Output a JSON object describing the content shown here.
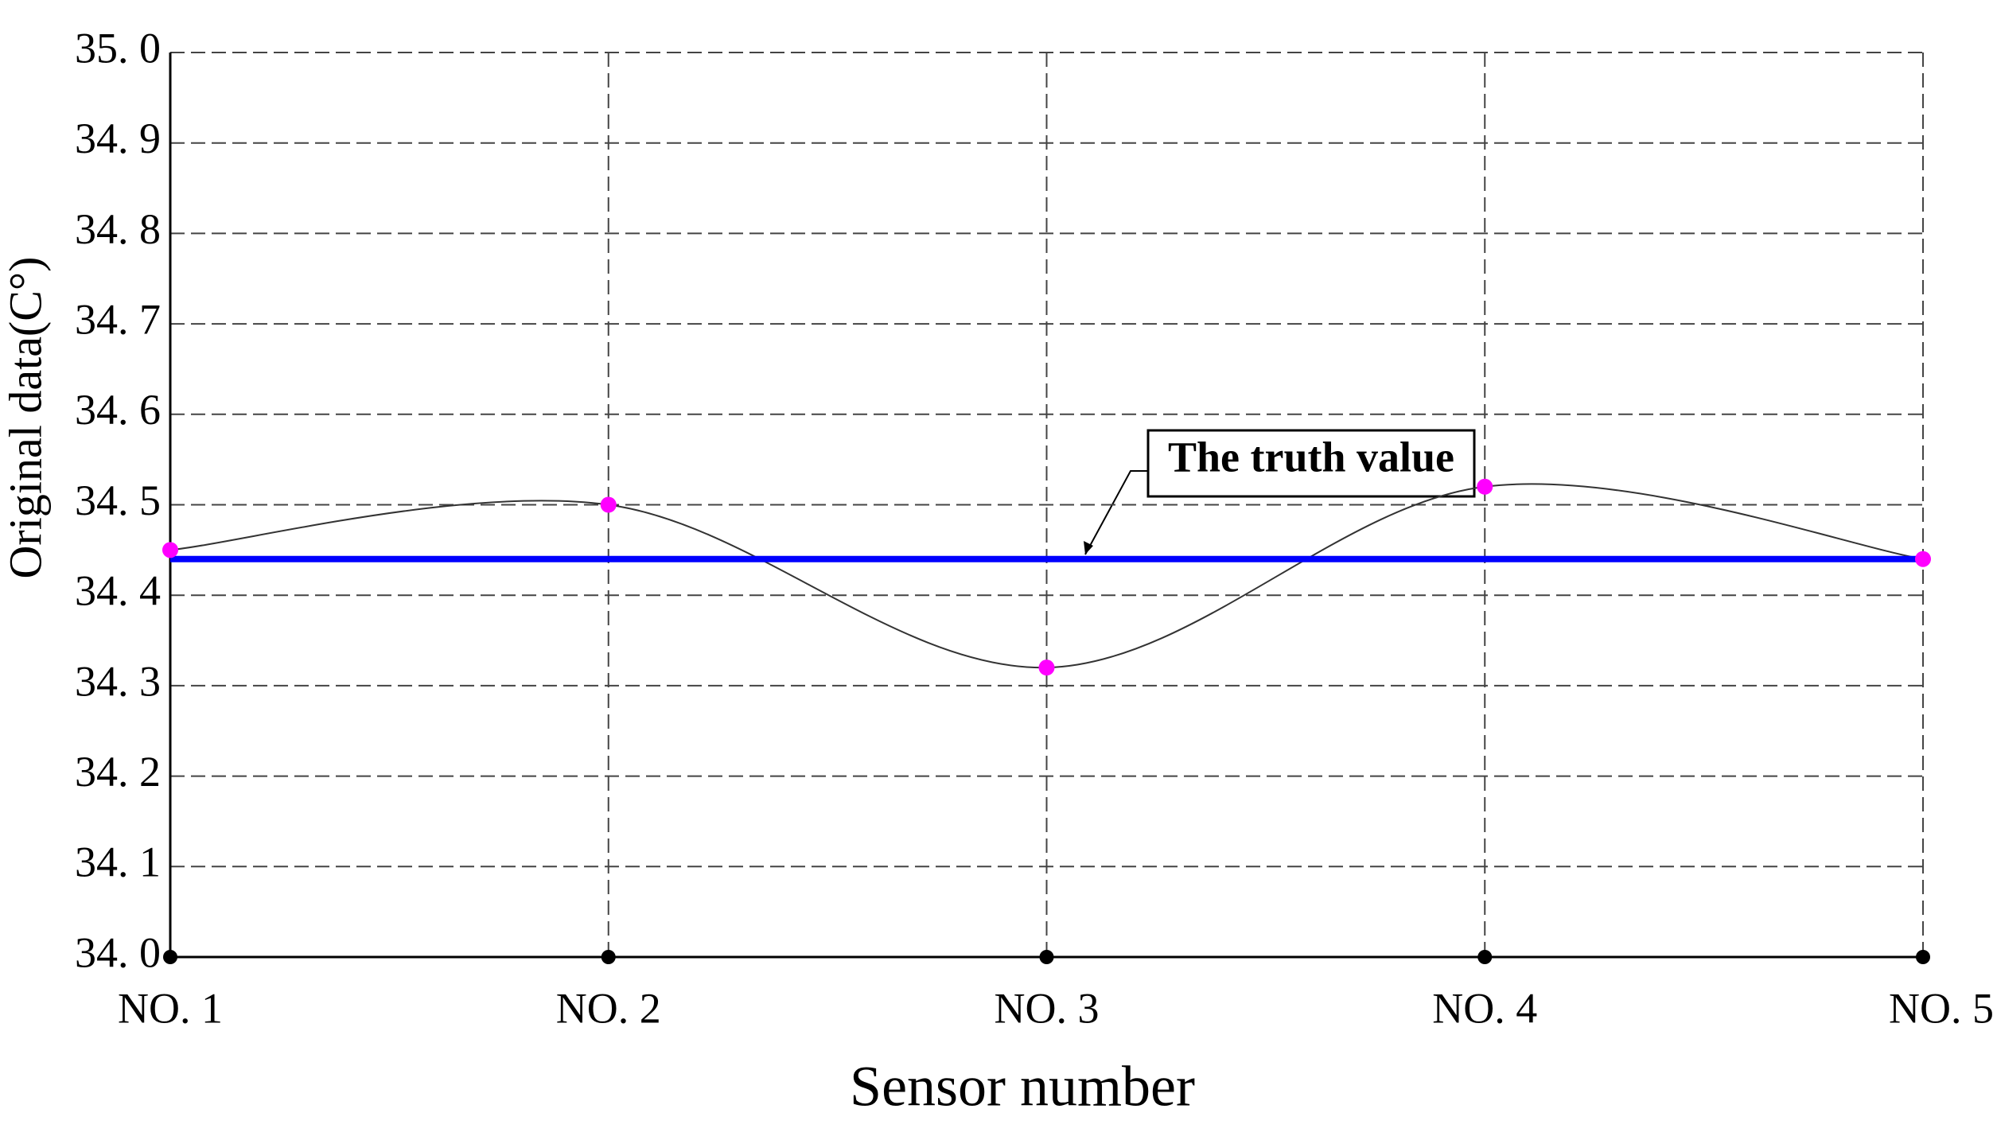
{
  "chart_data": {
    "type": "line",
    "x_label": "Sensor number",
    "y_label": "Original data(C°)",
    "categories": [
      "NO. 1",
      "NO. 2",
      "NO. 3",
      "NO. 4",
      "NO. 5"
    ],
    "series": [
      {
        "color": "#333333",
        "marker_color": "#ff00ff",
        "smooth": true,
        "values": [
          34.45,
          34.5,
          34.32,
          34.52,
          34.44
        ]
      },
      {
        "name": "The truth value",
        "color": "#0000ff",
        "values": [
          34.44,
          34.44,
          34.44,
          34.44,
          34.44
        ]
      }
    ],
    "ylim": [
      34.0,
      35.0
    ],
    "yticks": [
      {
        "value": 34.0,
        "label": "34. 0"
      },
      {
        "value": 34.1,
        "label": "34. 1"
      },
      {
        "value": 34.2,
        "label": "34. 2"
      },
      {
        "value": 34.3,
        "label": "34. 3"
      },
      {
        "value": 34.4,
        "label": "34. 4"
      },
      {
        "value": 34.5,
        "label": "34. 5"
      },
      {
        "value": 34.6,
        "label": "34. 6"
      },
      {
        "value": 34.7,
        "label": "34. 7"
      },
      {
        "value": 34.8,
        "label": "34. 8"
      },
      {
        "value": 34.9,
        "label": "34. 9"
      },
      {
        "value": 35.0,
        "label": "35. 0"
      }
    ],
    "grid": true
  }
}
